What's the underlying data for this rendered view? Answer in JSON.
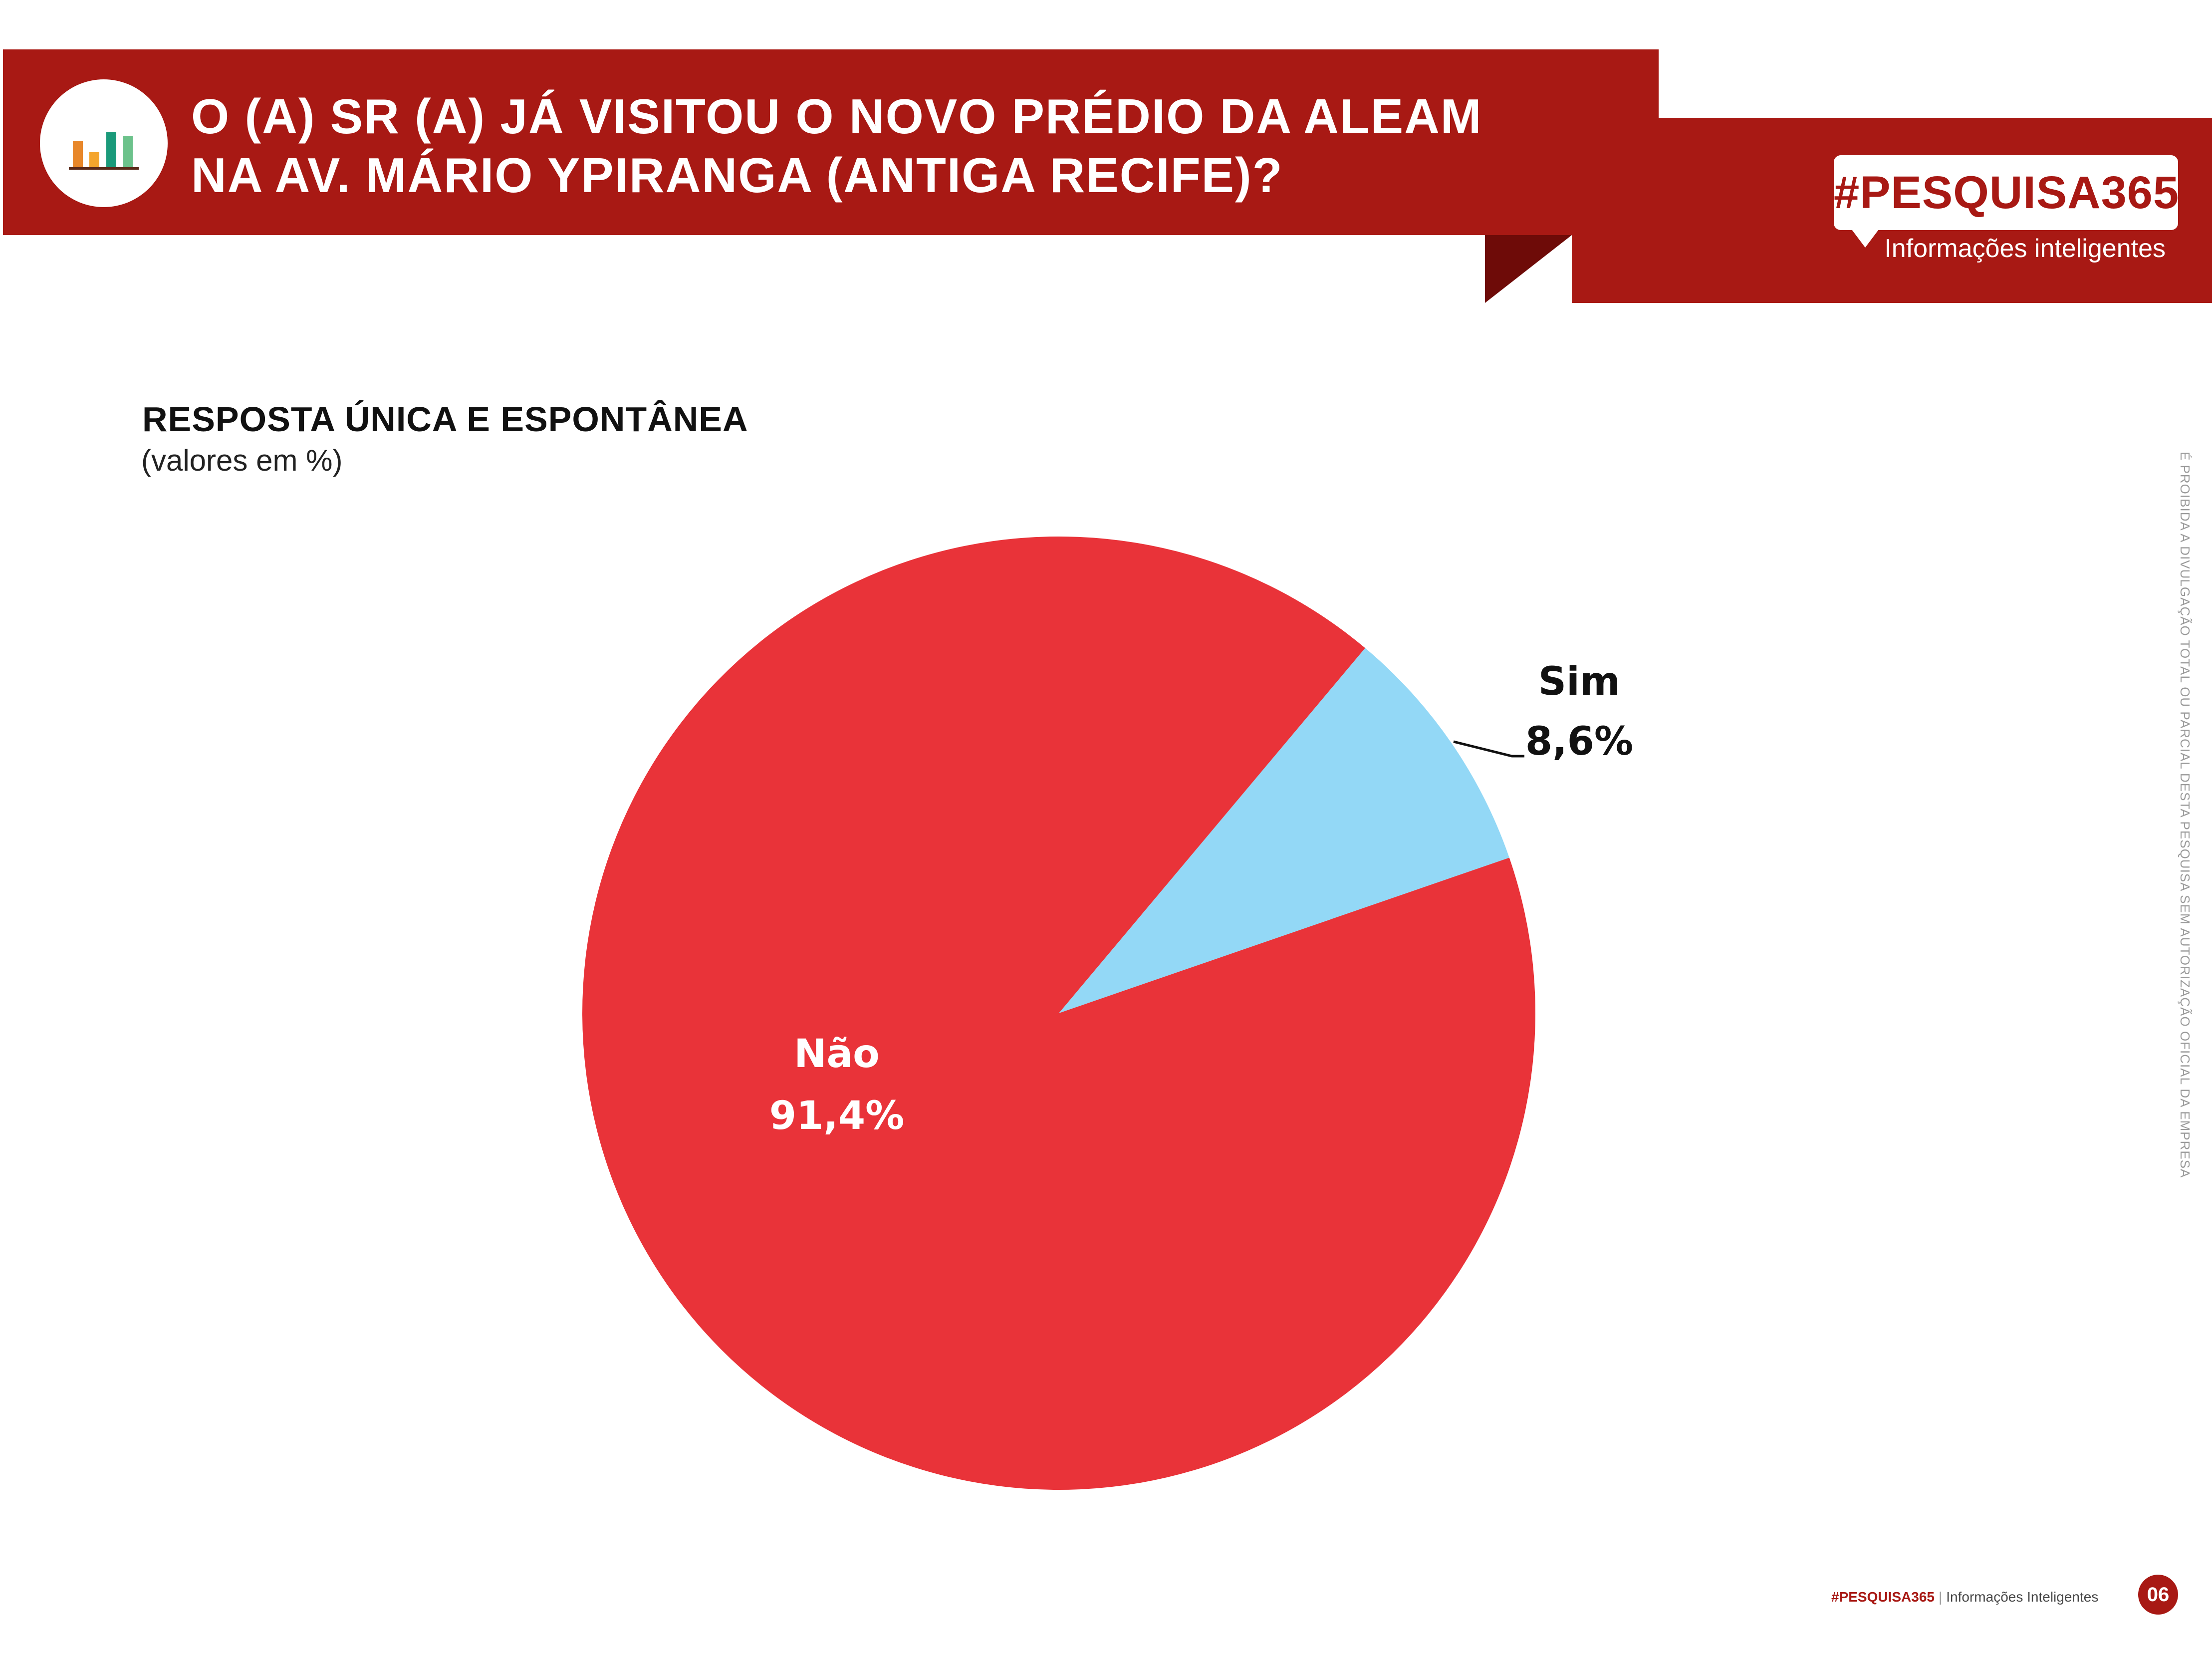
{
  "header": {
    "title_line1": "O (A) SR (A) JÁ VISITOU O NOVO PRÉDIO DA ALEAM",
    "title_line2": "NA AV. MÁRIO YPIRANGA (ANTIGA RECIFE)?",
    "icon": "bar-chart-icon",
    "accent_color": "#a81914"
  },
  "brand": {
    "name": "#PESQUISA365",
    "tagline": "Informações inteligentes"
  },
  "subtitle": "RESPOSTA ÚNICA E ESPONTÂNEA",
  "subnote": "(valores em %)",
  "side_note": "É PROIBIDA A DIVULGAÇÃO TOTAL OU PARCIAL DESTA PESQUISA SEM AUTORIZAÇÃO OFICIAL DA EMPRESA",
  "chart_data": {
    "type": "pie",
    "slices": [
      {
        "label": "Sim",
        "value": 8.6,
        "display": "8,6%",
        "color": "#93d8f6"
      },
      {
        "label": "Não",
        "value": 91.4,
        "display": "91,4%",
        "color": "#e93339"
      }
    ]
  },
  "footer": {
    "brand": "#PESQUISA365",
    "separator": "|",
    "tagline": "Informações Inteligentes",
    "page": "06"
  }
}
